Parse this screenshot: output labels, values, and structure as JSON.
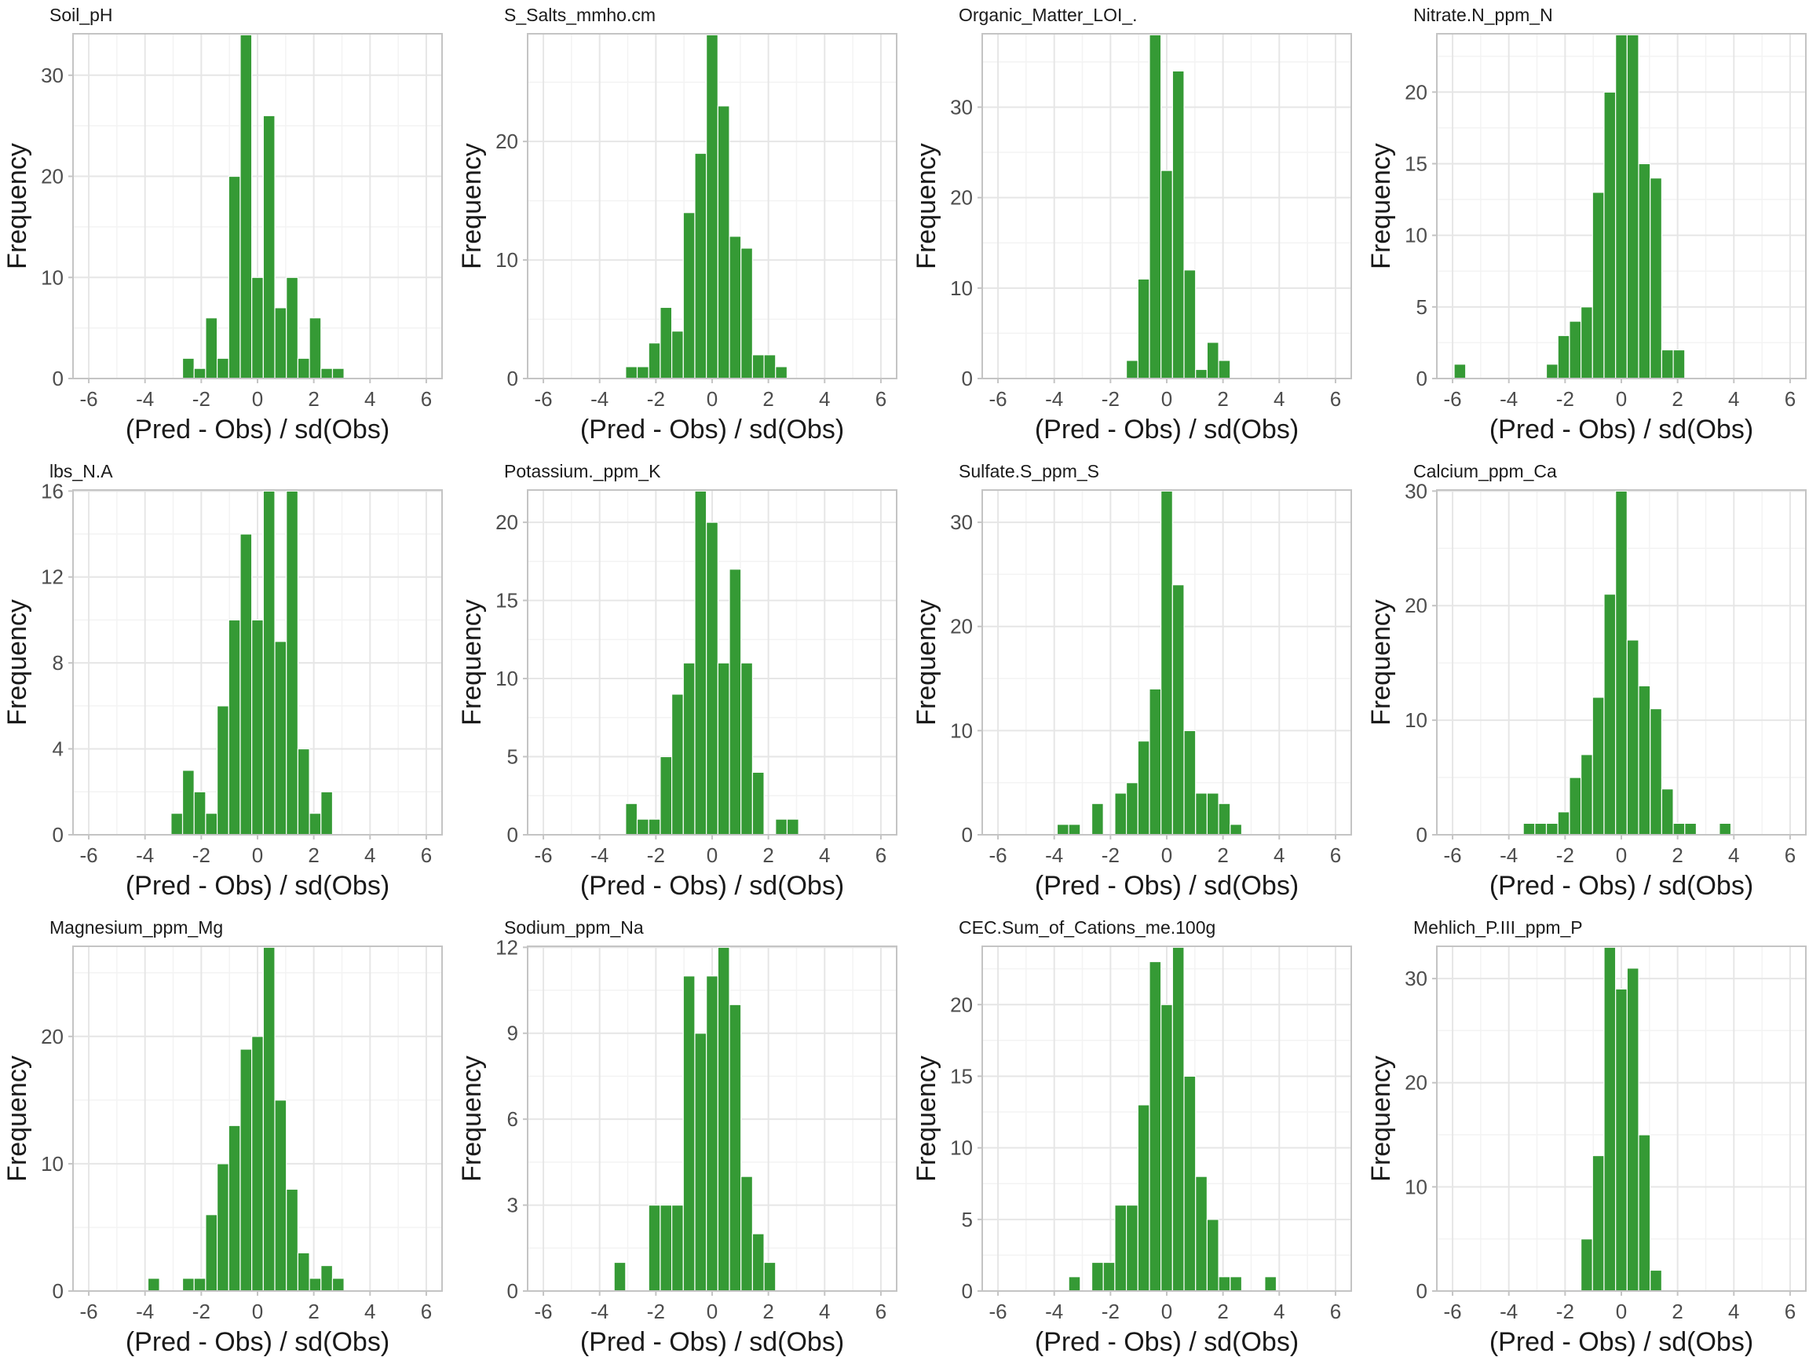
{
  "layout": {
    "rows": 3,
    "cols": 4
  },
  "colors": {
    "bar_fill": "#359a35",
    "bar_outline": "#ffffff",
    "panel_border": "#c4c4c4",
    "grid_major": "#e6e6e6",
    "grid_minor": "#f3f3f3"
  },
  "chart_data": [
    {
      "type": "bar",
      "title": "Soil_pH",
      "xlabel": "(Pred - Obs) / sd(Obs)",
      "ylabel": "Frequency",
      "xlim": [
        -6.56,
        6.56
      ],
      "ylim": [
        0,
        34
      ],
      "xticks": [
        -6,
        -4,
        -2,
        0,
        2,
        4,
        6
      ],
      "yticks": [
        0,
        10,
        20,
        30
      ],
      "grid": true,
      "bin_width": 0.41,
      "x": [
        -2.46,
        -2.05,
        -1.64,
        -1.23,
        -0.82,
        -0.41,
        0,
        0.41,
        0.82,
        1.23,
        1.64,
        2.05,
        2.46,
        2.87
      ],
      "values": [
        2,
        1,
        6,
        2,
        20,
        34,
        10,
        26,
        7,
        10,
        2,
        6,
        1,
        1
      ]
    },
    {
      "type": "bar",
      "title": "S_Salts_mmho.cm",
      "xlabel": "(Pred - Obs) / sd(Obs)",
      "ylabel": "Frequency",
      "xlim": [
        -6.56,
        6.56
      ],
      "ylim": [
        0,
        29
      ],
      "xticks": [
        -6,
        -4,
        -2,
        0,
        2,
        4,
        6
      ],
      "yticks": [
        0,
        10,
        20
      ],
      "grid": true,
      "bin_width": 0.41,
      "x": [
        -2.87,
        -2.46,
        -2.05,
        -1.64,
        -1.23,
        -0.82,
        -0.41,
        0,
        0.41,
        0.82,
        1.23,
        1.64,
        2.05,
        2.46
      ],
      "values": [
        1,
        1,
        3,
        6,
        4,
        14,
        19,
        29,
        23,
        12,
        11,
        2,
        2,
        1
      ]
    },
    {
      "type": "bar",
      "title": "Organic_Matter_LOI_.",
      "xlabel": "(Pred - Obs) / sd(Obs)",
      "ylabel": "Frequency",
      "xlim": [
        -6.56,
        6.56
      ],
      "ylim": [
        0,
        38
      ],
      "xticks": [
        -6,
        -4,
        -2,
        0,
        2,
        4,
        6
      ],
      "yticks": [
        0,
        10,
        20,
        30
      ],
      "grid": true,
      "bin_width": 0.41,
      "x": [
        -1.23,
        -0.82,
        -0.41,
        0,
        0.41,
        0.82,
        1.23,
        1.64,
        2.05
      ],
      "values": [
        2,
        11,
        38,
        23,
        34,
        12,
        1,
        4,
        2
      ]
    },
    {
      "type": "bar",
      "title": "Nitrate.N_ppm_N",
      "xlabel": "(Pred - Obs) / sd(Obs)",
      "ylabel": "Frequency",
      "xlim": [
        -6.56,
        6.56
      ],
      "ylim": [
        0,
        24
      ],
      "xticks": [
        -6,
        -4,
        -2,
        0,
        2,
        4,
        6
      ],
      "yticks": [
        0,
        5,
        10,
        15,
        20
      ],
      "grid": true,
      "bin_width": 0.41,
      "x": [
        -5.74,
        -2.46,
        -2.05,
        -1.64,
        -1.23,
        -0.82,
        -0.41,
        0,
        0.41,
        0.82,
        1.23,
        1.64,
        2.05
      ],
      "values": [
        1,
        1,
        3,
        4,
        5,
        13,
        20,
        24,
        24,
        15,
        14,
        2,
        2
      ]
    },
    {
      "type": "bar",
      "title": "lbs_N.A",
      "xlabel": "(Pred - Obs) / sd(Obs)",
      "ylabel": "Frequency",
      "xlim": [
        -6.56,
        6.56
      ],
      "ylim": [
        0,
        16
      ],
      "xticks": [
        -6,
        -4,
        -2,
        0,
        2,
        4,
        6
      ],
      "yticks": [
        0,
        4,
        8,
        12,
        16
      ],
      "grid": true,
      "bin_width": 0.41,
      "x": [
        -2.87,
        -2.46,
        -2.05,
        -1.64,
        -1.23,
        -0.82,
        -0.41,
        0,
        0.41,
        0.82,
        1.23,
        1.64,
        2.05,
        2.46
      ],
      "values": [
        1,
        3,
        2,
        1,
        6,
        10,
        14,
        10,
        16,
        9,
        16,
        4,
        1,
        2
      ]
    },
    {
      "type": "bar",
      "title": "Potassium._ppm_K",
      "xlabel": "(Pred - Obs) / sd(Obs)",
      "ylabel": "Frequency",
      "xlim": [
        -6.56,
        6.56
      ],
      "ylim": [
        0,
        22
      ],
      "xticks": [
        -6,
        -4,
        -2,
        0,
        2,
        4,
        6
      ],
      "yticks": [
        0,
        5,
        10,
        15,
        20
      ],
      "grid": true,
      "bin_width": 0.41,
      "x": [
        -2.87,
        -2.46,
        -2.05,
        -1.64,
        -1.23,
        -0.82,
        -0.41,
        0,
        0.41,
        0.82,
        1.23,
        1.64,
        2.46,
        2.87
      ],
      "values": [
        2,
        1,
        1,
        5,
        9,
        11,
        22,
        20,
        11,
        17,
        11,
        4,
        1,
        1
      ]
    },
    {
      "type": "bar",
      "title": "Sulfate.S_ppm_S",
      "xlabel": "(Pred - Obs) / sd(Obs)",
      "ylabel": "Frequency",
      "xlim": [
        -6.56,
        6.56
      ],
      "ylim": [
        0,
        33
      ],
      "xticks": [
        -6,
        -4,
        -2,
        0,
        2,
        4,
        6
      ],
      "yticks": [
        0,
        10,
        20,
        30
      ],
      "grid": true,
      "bin_width": 0.41,
      "x": [
        -3.69,
        -3.28,
        -2.46,
        -1.64,
        -1.23,
        -0.82,
        -0.41,
        0,
        0.41,
        0.82,
        1.23,
        1.64,
        2.05,
        2.46
      ],
      "values": [
        1,
        1,
        3,
        4,
        5,
        9,
        14,
        33,
        24,
        10,
        4,
        4,
        3,
        1
      ]
    },
    {
      "type": "bar",
      "title": "Calcium_ppm_Ca",
      "xlabel": "(Pred - Obs) / sd(Obs)",
      "ylabel": "Frequency",
      "xlim": [
        -6.56,
        6.56
      ],
      "ylim": [
        0,
        30
      ],
      "xticks": [
        -6,
        -4,
        -2,
        0,
        2,
        4,
        6
      ],
      "yticks": [
        0,
        10,
        20,
        30
      ],
      "grid": true,
      "bin_width": 0.41,
      "x": [
        -3.28,
        -2.87,
        -2.46,
        -2.05,
        -1.64,
        -1.23,
        -0.82,
        -0.41,
        0,
        0.41,
        0.82,
        1.23,
        1.64,
        2.05,
        2.46,
        3.69
      ],
      "values": [
        1,
        1,
        1,
        2,
        5,
        7,
        12,
        21,
        30,
        17,
        13,
        11,
        4,
        1,
        1,
        1
      ]
    },
    {
      "type": "bar",
      "title": "Magnesium_ppm_Mg",
      "xlabel": "(Pred - Obs) / sd(Obs)",
      "ylabel": "Frequency",
      "xlim": [
        -6.56,
        6.56
      ],
      "ylim": [
        0,
        27
      ],
      "xticks": [
        -6,
        -4,
        -2,
        0,
        2,
        4,
        6
      ],
      "yticks": [
        0,
        10,
        20
      ],
      "grid": true,
      "bin_width": 0.41,
      "x": [
        -3.69,
        -2.46,
        -2.05,
        -1.64,
        -1.23,
        -0.82,
        -0.41,
        0,
        0.41,
        0.82,
        1.23,
        1.64,
        2.05,
        2.46,
        2.87
      ],
      "values": [
        1,
        1,
        1,
        6,
        10,
        13,
        19,
        20,
        27,
        15,
        8,
        3,
        1,
        2,
        1
      ]
    },
    {
      "type": "bar",
      "title": "Sodium_ppm_Na",
      "xlabel": "(Pred - Obs) / sd(Obs)",
      "ylabel": "Frequency",
      "xlim": [
        -6.56,
        6.56
      ],
      "ylim": [
        0,
        12
      ],
      "xticks": [
        -6,
        -4,
        -2,
        0,
        2,
        4,
        6
      ],
      "yticks": [
        0,
        3,
        6,
        9,
        12
      ],
      "grid": true,
      "bin_width": 0.41,
      "x": [
        -3.28,
        -2.05,
        -1.64,
        -1.23,
        -0.82,
        -0.41,
        0,
        0.41,
        0.82,
        1.23,
        1.64,
        2.05
      ],
      "values": [
        1,
        3,
        3,
        3,
        11,
        9,
        11,
        12,
        10,
        4,
        2,
        1
      ]
    },
    {
      "type": "bar",
      "title": "CEC.Sum_of_Cations_me.100g",
      "xlabel": "(Pred - Obs) / sd(Obs)",
      "ylabel": "Frequency",
      "xlim": [
        -6.56,
        6.56
      ],
      "ylim": [
        0,
        24
      ],
      "xticks": [
        -6,
        -4,
        -2,
        0,
        2,
        4,
        6
      ],
      "yticks": [
        0,
        5,
        10,
        15,
        20
      ],
      "grid": true,
      "bin_width": 0.41,
      "x": [
        -3.28,
        -2.46,
        -2.05,
        -1.64,
        -1.23,
        -0.82,
        -0.41,
        0,
        0.41,
        0.82,
        1.23,
        1.64,
        2.05,
        2.46,
        3.69
      ],
      "values": [
        1,
        2,
        2,
        6,
        6,
        13,
        23,
        20,
        24,
        15,
        8,
        5,
        1,
        1,
        1
      ]
    },
    {
      "type": "bar",
      "title": "Mehlich_P.III_ppm_P",
      "xlabel": "(Pred - Obs) / sd(Obs)",
      "ylabel": "Frequency",
      "xlim": [
        -6.56,
        6.56
      ],
      "ylim": [
        0,
        33
      ],
      "xticks": [
        -6,
        -4,
        -2,
        0,
        2,
        4,
        6
      ],
      "yticks": [
        0,
        10,
        20,
        30
      ],
      "grid": true,
      "bin_width": 0.41,
      "x": [
        -1.23,
        -0.82,
        -0.41,
        0,
        0.41,
        0.82,
        1.23
      ],
      "values": [
        5,
        13,
        33,
        29,
        31,
        15,
        2
      ]
    }
  ]
}
